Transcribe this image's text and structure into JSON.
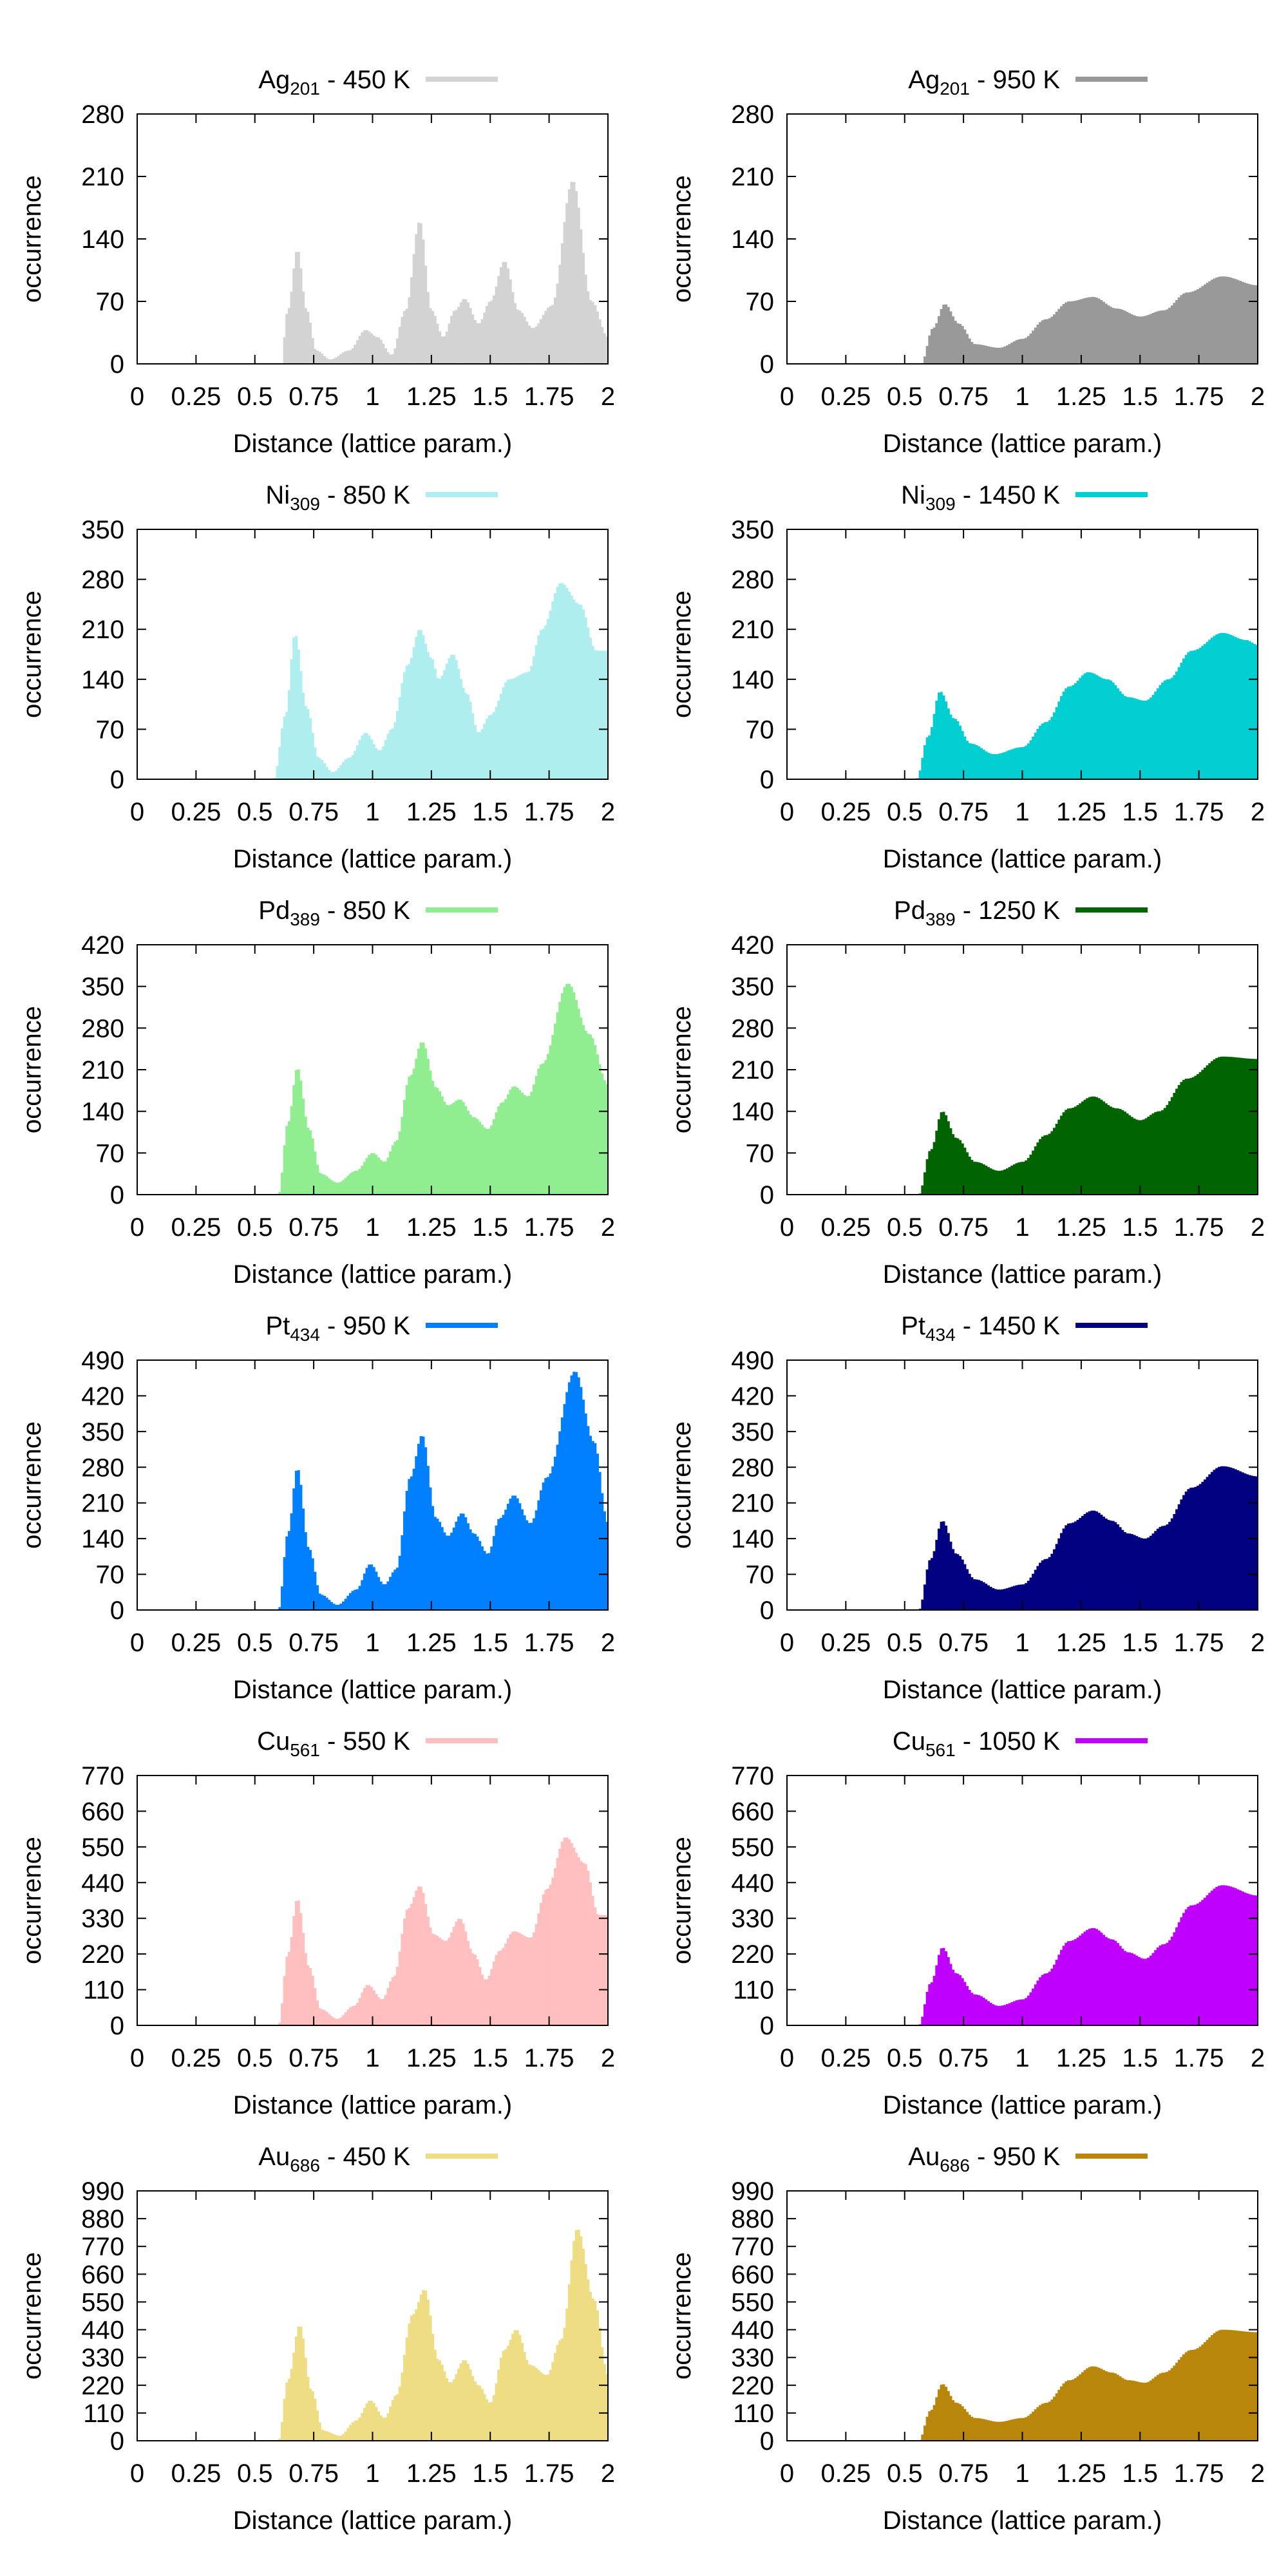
{
  "xlabel": "Distance (lattice param.)",
  "ylabel": "occurrence",
  "chart_data": [
    {
      "type": "bar",
      "element": "Ag",
      "subscript": "201",
      "temperature_label": "450 K",
      "color": "#d3d3d3",
      "xlim": [
        0,
        2
      ],
      "ylim": [
        0,
        280
      ],
      "xticks": [
        "0",
        "0.25",
        "0.5",
        "0.75",
        "1",
        "1.25",
        "1.5",
        "1.75",
        "2"
      ],
      "yticks": [
        0,
        70,
        140,
        210,
        280
      ],
      "onset": 0.62,
      "peaks": [
        [
          0.61,
          0
        ],
        [
          0.64,
          60
        ],
        [
          0.68,
          128
        ],
        [
          0.72,
          60
        ],
        [
          0.76,
          15
        ],
        [
          0.82,
          5
        ],
        [
          0.9,
          15
        ],
        [
          0.97,
          38
        ],
        [
          1.02,
          30
        ],
        [
          1.08,
          10
        ],
        [
          1.14,
          60
        ],
        [
          1.2,
          160
        ],
        [
          1.25,
          60
        ],
        [
          1.3,
          30
        ],
        [
          1.35,
          60
        ],
        [
          1.39,
          73
        ],
        [
          1.45,
          45
        ],
        [
          1.5,
          70
        ],
        [
          1.56,
          115
        ],
        [
          1.62,
          60
        ],
        [
          1.68,
          40
        ],
        [
          1.76,
          65
        ],
        [
          1.85,
          205
        ],
        [
          1.93,
          70
        ],
        [
          2.0,
          30
        ]
      ]
    },
    {
      "type": "bar",
      "element": "Ag",
      "subscript": "201",
      "temperature_label": "950 K",
      "color": "#999999",
      "xlim": [
        0,
        2
      ],
      "ylim": [
        0,
        280
      ],
      "xticks": [
        "0",
        "0.25",
        "0.5",
        "0.75",
        "1",
        "1.25",
        "1.5",
        "1.75",
        "2"
      ],
      "yticks": [
        0,
        70,
        140,
        210,
        280
      ],
      "onset": 0.57,
      "peaks": [
        [
          0.57,
          0
        ],
        [
          0.62,
          40
        ],
        [
          0.67,
          67
        ],
        [
          0.73,
          45
        ],
        [
          0.8,
          22
        ],
        [
          0.9,
          18
        ],
        [
          1.0,
          28
        ],
        [
          1.1,
          50
        ],
        [
          1.2,
          70
        ],
        [
          1.3,
          75
        ],
        [
          1.4,
          62
        ],
        [
          1.5,
          53
        ],
        [
          1.6,
          60
        ],
        [
          1.7,
          80
        ],
        [
          1.85,
          98
        ],
        [
          2.0,
          88
        ]
      ]
    },
    {
      "type": "bar",
      "element": "Ni",
      "subscript": "309",
      "temperature_label": "850 K",
      "color": "#afeeee",
      "xlim": [
        0,
        2
      ],
      "ylim": [
        0,
        350
      ],
      "xticks": [
        "0",
        "0.25",
        "0.5",
        "0.75",
        "1",
        "1.25",
        "1.5",
        "1.75",
        "2"
      ],
      "yticks": [
        0,
        70,
        140,
        210,
        280,
        350
      ],
      "onset": 0.58,
      "peaks": [
        [
          0.58,
          0
        ],
        [
          0.63,
          90
        ],
        [
          0.67,
          203
        ],
        [
          0.72,
          100
        ],
        [
          0.77,
          30
        ],
        [
          0.83,
          10
        ],
        [
          0.9,
          30
        ],
        [
          0.97,
          65
        ],
        [
          1.03,
          40
        ],
        [
          1.08,
          70
        ],
        [
          1.15,
          160
        ],
        [
          1.2,
          210
        ],
        [
          1.25,
          170
        ],
        [
          1.28,
          140
        ],
        [
          1.34,
          175
        ],
        [
          1.4,
          120
        ],
        [
          1.45,
          65
        ],
        [
          1.5,
          90
        ],
        [
          1.58,
          140
        ],
        [
          1.66,
          150
        ],
        [
          1.72,
          210
        ],
        [
          1.8,
          275
        ],
        [
          1.88,
          245
        ],
        [
          1.95,
          180
        ],
        [
          2.0,
          180
        ]
      ]
    },
    {
      "type": "bar",
      "element": "Ni",
      "subscript": "309",
      "temperature_label": "1450 K",
      "color": "#00ced1",
      "xlim": [
        0,
        2
      ],
      "ylim": [
        0,
        350
      ],
      "xticks": [
        "0",
        "0.25",
        "0.5",
        "0.75",
        "1",
        "1.25",
        "1.5",
        "1.75",
        "2"
      ],
      "yticks": [
        0,
        70,
        140,
        210,
        280,
        350
      ],
      "onset": 0.55,
      "peaks": [
        [
          0.55,
          0
        ],
        [
          0.6,
          60
        ],
        [
          0.65,
          123
        ],
        [
          0.71,
          85
        ],
        [
          0.78,
          50
        ],
        [
          0.88,
          35
        ],
        [
          1.0,
          45
        ],
        [
          1.1,
          80
        ],
        [
          1.2,
          130
        ],
        [
          1.28,
          150
        ],
        [
          1.36,
          140
        ],
        [
          1.45,
          115
        ],
        [
          1.52,
          110
        ],
        [
          1.62,
          140
        ],
        [
          1.72,
          180
        ],
        [
          1.85,
          205
        ],
        [
          1.95,
          195
        ],
        [
          2.0,
          188
        ]
      ]
    },
    {
      "type": "bar",
      "element": "Pd",
      "subscript": "389",
      "temperature_label": "850 K",
      "color": "#90ee90",
      "xlim": [
        0,
        2
      ],
      "ylim": [
        0,
        420
      ],
      "xticks": [
        "0",
        "0.25",
        "0.5",
        "0.75",
        "1",
        "1.25",
        "1.5",
        "1.75",
        "2"
      ],
      "yticks": [
        0,
        70,
        140,
        210,
        280,
        350,
        420
      ],
      "onset": 0.6,
      "peaks": [
        [
          0.6,
          0
        ],
        [
          0.64,
          120
        ],
        [
          0.68,
          213
        ],
        [
          0.73,
          110
        ],
        [
          0.78,
          35
        ],
        [
          0.85,
          20
        ],
        [
          0.93,
          40
        ],
        [
          1.0,
          70
        ],
        [
          1.05,
          55
        ],
        [
          1.1,
          90
        ],
        [
          1.16,
          200
        ],
        [
          1.21,
          257
        ],
        [
          1.27,
          180
        ],
        [
          1.32,
          150
        ],
        [
          1.37,
          160
        ],
        [
          1.43,
          130
        ],
        [
          1.49,
          110
        ],
        [
          1.55,
          155
        ],
        [
          1.6,
          182
        ],
        [
          1.66,
          165
        ],
        [
          1.72,
          220
        ],
        [
          1.83,
          355
        ],
        [
          1.92,
          270
        ],
        [
          2.0,
          185
        ]
      ]
    },
    {
      "type": "bar",
      "element": "Pd",
      "subscript": "389",
      "temperature_label": "1250 K",
      "color": "#006400",
      "xlim": [
        0,
        2
      ],
      "ylim": [
        0,
        420
      ],
      "xticks": [
        "0",
        "0.25",
        "0.5",
        "0.75",
        "1",
        "1.25",
        "1.5",
        "1.75",
        "2"
      ],
      "yticks": [
        0,
        70,
        140,
        210,
        280,
        350,
        420
      ],
      "onset": 0.56,
      "peaks": [
        [
          0.56,
          0
        ],
        [
          0.61,
          75
        ],
        [
          0.66,
          140
        ],
        [
          0.72,
          95
        ],
        [
          0.8,
          55
        ],
        [
          0.9,
          40
        ],
        [
          1.0,
          55
        ],
        [
          1.1,
          100
        ],
        [
          1.2,
          145
        ],
        [
          1.3,
          165
        ],
        [
          1.4,
          145
        ],
        [
          1.5,
          125
        ],
        [
          1.58,
          140
        ],
        [
          1.7,
          195
        ],
        [
          1.85,
          232
        ],
        [
          2.0,
          228
        ]
      ]
    },
    {
      "type": "bar",
      "element": "Pt",
      "subscript": "434",
      "temperature_label": "950 K",
      "color": "#0080ff",
      "xlim": [
        0,
        2
      ],
      "ylim": [
        0,
        490
      ],
      "xticks": [
        "0",
        "0.25",
        "0.5",
        "0.75",
        "1",
        "1.25",
        "1.5",
        "1.75",
        "2"
      ],
      "yticks": [
        0,
        70,
        140,
        210,
        280,
        350,
        420,
        490
      ],
      "onset": 0.6,
      "peaks": [
        [
          0.6,
          0
        ],
        [
          0.64,
          150
        ],
        [
          0.68,
          278
        ],
        [
          0.73,
          120
        ],
        [
          0.78,
          30
        ],
        [
          0.85,
          10
        ],
        [
          0.93,
          40
        ],
        [
          0.99,
          90
        ],
        [
          1.05,
          50
        ],
        [
          1.1,
          80
        ],
        [
          1.16,
          260
        ],
        [
          1.21,
          343
        ],
        [
          1.27,
          180
        ],
        [
          1.32,
          145
        ],
        [
          1.38,
          190
        ],
        [
          1.43,
          150
        ],
        [
          1.49,
          110
        ],
        [
          1.54,
          180
        ],
        [
          1.6,
          225
        ],
        [
          1.67,
          170
        ],
        [
          1.74,
          260
        ],
        [
          1.86,
          468
        ],
        [
          1.94,
          330
        ],
        [
          2.0,
          170
        ]
      ]
    },
    {
      "type": "bar",
      "element": "Pt",
      "subscript": "434",
      "temperature_label": "1450 K",
      "color": "#000080",
      "xlim": [
        0,
        2
      ],
      "ylim": [
        0,
        490
      ],
      "xticks": [
        "0",
        "0.25",
        "0.5",
        "0.75",
        "1",
        "1.25",
        "1.5",
        "1.75",
        "2"
      ],
      "yticks": [
        0,
        70,
        140,
        210,
        280,
        350,
        420,
        490
      ],
      "onset": 0.56,
      "peaks": [
        [
          0.56,
          0
        ],
        [
          0.61,
          100
        ],
        [
          0.66,
          175
        ],
        [
          0.72,
          110
        ],
        [
          0.8,
          60
        ],
        [
          0.9,
          40
        ],
        [
          1.0,
          50
        ],
        [
          1.1,
          100
        ],
        [
          1.2,
          170
        ],
        [
          1.3,
          195
        ],
        [
          1.38,
          175
        ],
        [
          1.45,
          150
        ],
        [
          1.52,
          140
        ],
        [
          1.6,
          165
        ],
        [
          1.72,
          240
        ],
        [
          1.85,
          282
        ],
        [
          2.0,
          262
        ]
      ]
    },
    {
      "type": "bar",
      "element": "Cu",
      "subscript": "561",
      "temperature_label": "550 K",
      "color": "#ffbfbf",
      "xlim": [
        0,
        2
      ],
      "ylim": [
        0,
        770
      ],
      "xticks": [
        "0",
        "0.25",
        "0.5",
        "0.75",
        "1",
        "1.25",
        "1.5",
        "1.75",
        "2"
      ],
      "yticks": [
        0,
        110,
        220,
        330,
        440,
        550,
        660,
        770
      ],
      "onset": 0.6,
      "peaks": [
        [
          0.6,
          0
        ],
        [
          0.64,
          220
        ],
        [
          0.68,
          390
        ],
        [
          0.73,
          180
        ],
        [
          0.78,
          50
        ],
        [
          0.85,
          20
        ],
        [
          0.92,
          60
        ],
        [
          0.98,
          125
        ],
        [
          1.04,
          80
        ],
        [
          1.09,
          150
        ],
        [
          1.15,
          360
        ],
        [
          1.2,
          430
        ],
        [
          1.26,
          280
        ],
        [
          1.31,
          260
        ],
        [
          1.37,
          330
        ],
        [
          1.43,
          220
        ],
        [
          1.48,
          140
        ],
        [
          1.54,
          230
        ],
        [
          1.6,
          290
        ],
        [
          1.67,
          270
        ],
        [
          1.74,
          420
        ],
        [
          1.82,
          580
        ],
        [
          1.9,
          500
        ],
        [
          1.96,
          340
        ],
        [
          2.0,
          340
        ]
      ]
    },
    {
      "type": "bar",
      "element": "Cu",
      "subscript": "561",
      "temperature_label": "1050 K",
      "color": "#bf00ff",
      "xlim": [
        0,
        2
      ],
      "ylim": [
        0,
        770
      ],
      "xticks": [
        "0",
        "0.25",
        "0.5",
        "0.75",
        "1",
        "1.25",
        "1.5",
        "1.75",
        "2"
      ],
      "yticks": [
        0,
        110,
        220,
        330,
        440,
        550,
        660,
        770
      ],
      "onset": 0.56,
      "peaks": [
        [
          0.56,
          0
        ],
        [
          0.61,
          130
        ],
        [
          0.66,
          240
        ],
        [
          0.72,
          160
        ],
        [
          0.8,
          95
        ],
        [
          0.9,
          60
        ],
        [
          1.0,
          80
        ],
        [
          1.1,
          160
        ],
        [
          1.2,
          260
        ],
        [
          1.3,
          300
        ],
        [
          1.38,
          265
        ],
        [
          1.45,
          225
        ],
        [
          1.52,
          205
        ],
        [
          1.6,
          250
        ],
        [
          1.72,
          370
        ],
        [
          1.85,
          432
        ],
        [
          2.0,
          400
        ]
      ]
    },
    {
      "type": "bar",
      "element": "Au",
      "subscript": "686",
      "temperature_label": "450 K",
      "color": "#eedd82",
      "xlim": [
        0,
        2
      ],
      "ylim": [
        0,
        990
      ],
      "xticks": [
        "0",
        "0.25",
        "0.5",
        "0.75",
        "1",
        "1.25",
        "1.5",
        "1.75",
        "2"
      ],
      "yticks": [
        0,
        110,
        220,
        330,
        440,
        550,
        660,
        770,
        880,
        990
      ],
      "onset": 0.6,
      "peaks": [
        [
          0.6,
          0
        ],
        [
          0.64,
          240
        ],
        [
          0.69,
          458
        ],
        [
          0.74,
          200
        ],
        [
          0.79,
          40
        ],
        [
          0.86,
          20
        ],
        [
          0.93,
          80
        ],
        [
          0.99,
          160
        ],
        [
          1.05,
          90
        ],
        [
          1.1,
          180
        ],
        [
          1.17,
          500
        ],
        [
          1.22,
          600
        ],
        [
          1.28,
          320
        ],
        [
          1.33,
          230
        ],
        [
          1.39,
          320
        ],
        [
          1.45,
          220
        ],
        [
          1.5,
          150
        ],
        [
          1.56,
          360
        ],
        [
          1.61,
          440
        ],
        [
          1.67,
          300
        ],
        [
          1.74,
          260
        ],
        [
          1.8,
          400
        ],
        [
          1.87,
          840
        ],
        [
          1.94,
          560
        ],
        [
          2.0,
          260
        ]
      ]
    },
    {
      "type": "bar",
      "element": "Au",
      "subscript": "686",
      "temperature_label": "950 K",
      "color": "#b8860b",
      "xlim": [
        0,
        2
      ],
      "ylim": [
        0,
        990
      ],
      "xticks": [
        "0",
        "0.25",
        "0.5",
        "0.75",
        "1",
        "1.25",
        "1.5",
        "1.75",
        "2"
      ],
      "yticks": [
        0,
        110,
        220,
        330,
        440,
        550,
        660,
        770,
        880,
        990
      ],
      "onset": 0.56,
      "peaks": [
        [
          0.56,
          0
        ],
        [
          0.61,
          120
        ],
        [
          0.66,
          225
        ],
        [
          0.72,
          150
        ],
        [
          0.8,
          90
        ],
        [
          0.9,
          75
        ],
        [
          1.0,
          90
        ],
        [
          1.1,
          150
        ],
        [
          1.2,
          240
        ],
        [
          1.3,
          295
        ],
        [
          1.38,
          270
        ],
        [
          1.45,
          240
        ],
        [
          1.52,
          230
        ],
        [
          1.6,
          270
        ],
        [
          1.72,
          360
        ],
        [
          1.85,
          440
        ],
        [
          2.0,
          430
        ]
      ]
    }
  ]
}
